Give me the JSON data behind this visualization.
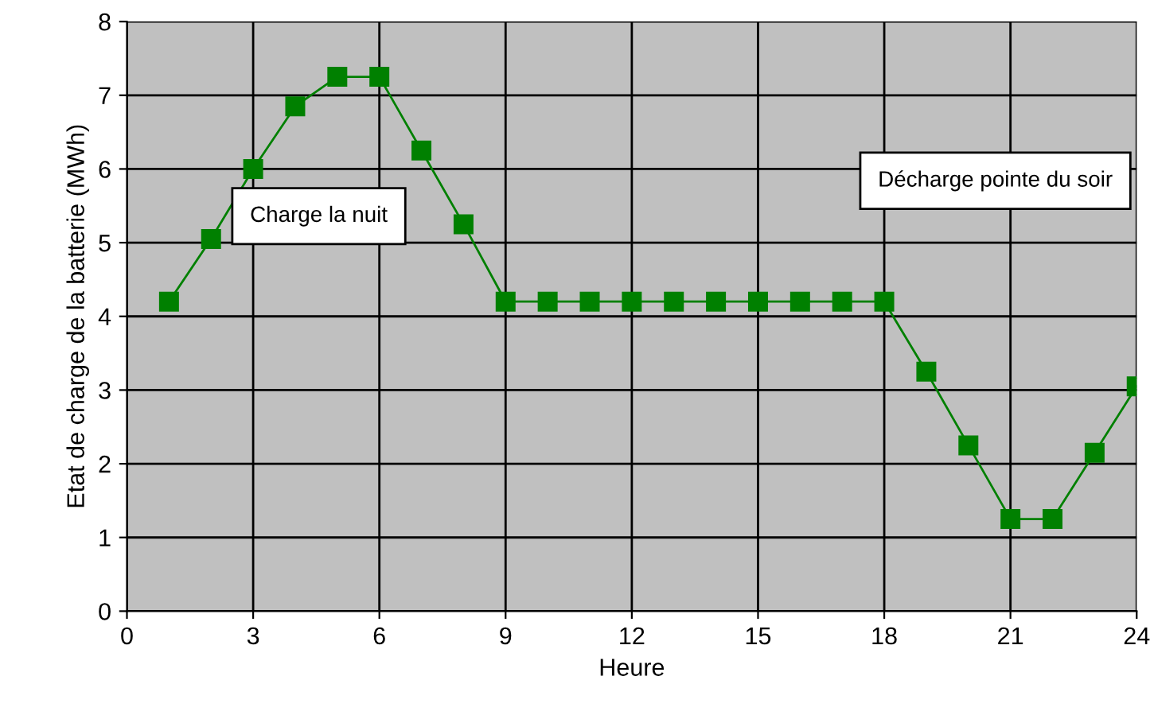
{
  "chart_data": {
    "type": "line",
    "xlabel": "Heure",
    "ylabel": "Etat de charge de la batterie (MWh)",
    "x": [
      1,
      2,
      3,
      4,
      5,
      6,
      7,
      8,
      9,
      10,
      11,
      12,
      13,
      14,
      15,
      16,
      17,
      18,
      19,
      20,
      21,
      22,
      23,
      24
    ],
    "series": [
      {
        "color": "#008000",
        "values": [
          4.2,
          5.05,
          6.0,
          6.85,
          7.25,
          7.25,
          6.25,
          5.25,
          4.2,
          4.2,
          4.2,
          4.2,
          4.2,
          4.2,
          4.2,
          4.2,
          4.2,
          4.2,
          3.25,
          2.25,
          1.25,
          1.25,
          2.15,
          3.05
        ]
      }
    ],
    "xlim": [
      0,
      24
    ],
    "xticks": [
      0,
      3,
      6,
      9,
      12,
      15,
      18,
      21,
      24
    ],
    "ylim": [
      0,
      8
    ],
    "yticks": [
      0,
      1,
      2,
      3,
      4,
      5,
      6,
      7,
      8
    ],
    "grid": true,
    "marker": "square",
    "line_style": "solid",
    "annotations": [
      "Charge la nuit",
      "Décharge pointe du soir"
    ]
  }
}
